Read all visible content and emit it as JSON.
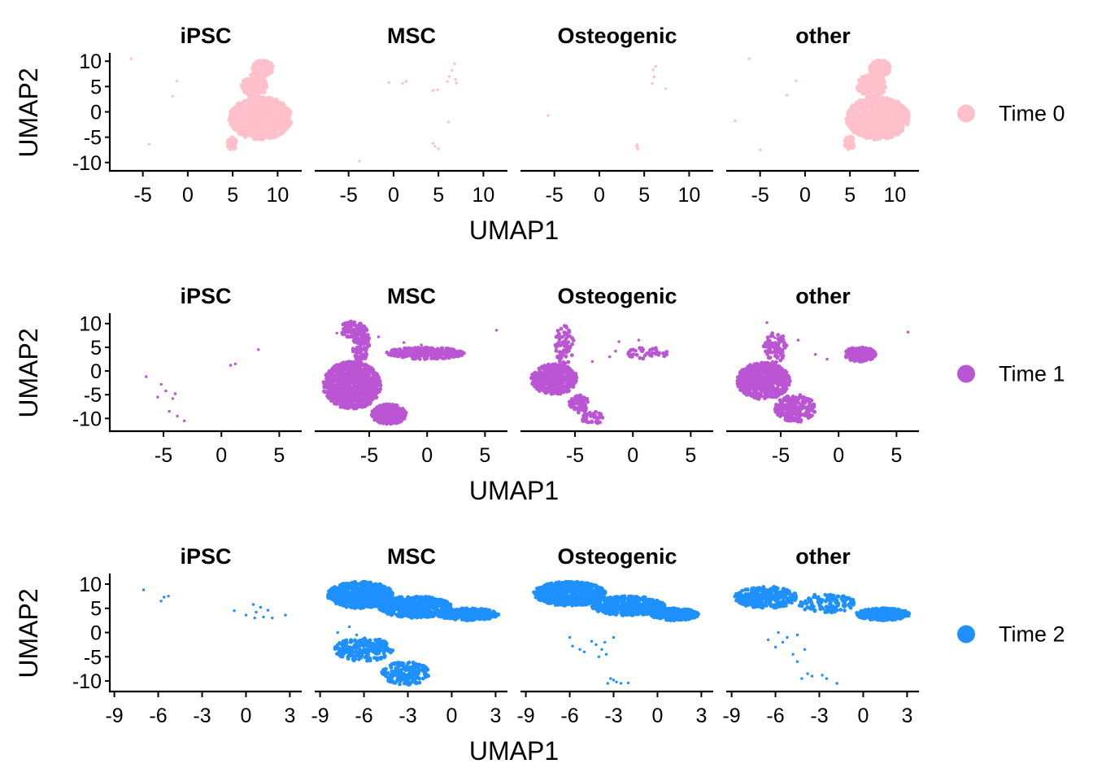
{
  "chart_data": [
    {
      "type": "scatter",
      "row_legend": "Time 0",
      "color": "#FFC0CB",
      "xlabel": "UMAP1",
      "ylabel": "UMAP2",
      "xlim": [
        -8.5,
        12.5
      ],
      "ylim": [
        -11,
        11
      ],
      "xticks": [
        -5,
        0,
        5,
        10
      ],
      "xtick_labels": [
        "-5",
        "0",
        "5",
        "10"
      ],
      "yticks": [
        10,
        5,
        0,
        -5,
        -10
      ],
      "ytick_labels": [
        "10",
        "5",
        "0",
        "-5",
        "-10"
      ],
      "panels": [
        {
          "title": "iPSC",
          "blobs": [
            {
              "x": [
                7.2,
                9.5
              ],
              "y": [
                7.0,
                10.2
              ],
              "n": 260
            },
            {
              "x": [
                6.0,
                8.8
              ],
              "y": [
                3.0,
                7.5
              ],
              "n": 220
            },
            {
              "x": [
                4.6,
                11.6
              ],
              "y": [
                -5.5,
                3.0
              ],
              "n": 900
            },
            {
              "x": [
                4.4,
                5.5
              ],
              "y": [
                -7.5,
                -5.0
              ],
              "n": 60
            }
          ],
          "points": [
            [
              -6.3,
              10.5
            ],
            [
              -1.2,
              6.1
            ],
            [
              -1.7,
              3.1
            ],
            [
              -4.3,
              -6.4
            ]
          ]
        },
        {
          "title": "MSC",
          "blobs": [],
          "points": [
            [
              6.8,
              9.5
            ],
            [
              6.5,
              8.2
            ],
            [
              6.2,
              7.0
            ],
            [
              6.9,
              6.4
            ],
            [
              6.0,
              6.0
            ],
            [
              7.0,
              5.7
            ],
            [
              4.9,
              4.3
            ],
            [
              4.4,
              4.2
            ],
            [
              1.4,
              6.0
            ],
            [
              1.0,
              5.6
            ],
            [
              -0.5,
              5.8
            ],
            [
              4.4,
              -6.2
            ],
            [
              4.6,
              -6.8
            ],
            [
              5.0,
              -7.3
            ],
            [
              -3.8,
              -9.7
            ],
            [
              6.1,
              -2.0
            ]
          ]
        },
        {
          "title": "Osteogenic",
          "blobs": [],
          "points": [
            [
              6.3,
              9.0
            ],
            [
              6.0,
              8.3
            ],
            [
              6.1,
              6.9
            ],
            [
              5.9,
              5.6
            ],
            [
              7.4,
              4.6
            ],
            [
              -5.7,
              -0.7
            ],
            [
              4.2,
              -6.5
            ],
            [
              4.2,
              -6.9
            ],
            [
              4.3,
              -7.3
            ]
          ]
        },
        {
          "title": "other",
          "blobs": [
            {
              "x": [
                7.2,
                9.5
              ],
              "y": [
                7.0,
                10.2
              ],
              "n": 260
            },
            {
              "x": [
                5.8,
                9.0
              ],
              "y": [
                2.8,
                7.5
              ],
              "n": 220
            },
            {
              "x": [
                4.6,
                11.6
              ],
              "y": [
                -5.5,
                3.0
              ],
              "n": 900
            },
            {
              "x": [
                4.4,
                5.5
              ],
              "y": [
                -7.5,
                -4.8
              ],
              "n": 60
            }
          ],
          "points": [
            [
              -6.2,
              10.5
            ],
            [
              -1.0,
              6.1
            ],
            [
              -2.0,
              3.3
            ],
            [
              -7.8,
              -1.8
            ],
            [
              -5.0,
              -7.5
            ],
            [
              8.5,
              -3.8
            ]
          ]
        }
      ]
    },
    {
      "type": "scatter",
      "row_legend": "Time 1",
      "color": "#BA55D3",
      "xlabel": "UMAP1",
      "ylabel": "UMAP2",
      "xlim": [
        -9.5,
        6.8
      ],
      "ylim": [
        -12,
        11.5
      ],
      "xticks": [
        -5,
        0,
        5
      ],
      "xtick_labels": [
        "-5",
        "0",
        "5"
      ],
      "yticks": [
        10,
        5,
        0,
        -5,
        -10
      ],
      "yticks_labels_note": "",
      "ytick_labels": [
        "10",
        "5",
        "0",
        "-5",
        "-10"
      ],
      "panels": [
        {
          "title": "iPSC",
          "blobs": [],
          "points": [
            [
              -6.5,
              -1.2
            ],
            [
              -5.2,
              -2.8
            ],
            [
              -4.8,
              -4.2
            ],
            [
              -5.5,
              -5.5
            ],
            [
              -4.2,
              -5.8
            ],
            [
              -4.5,
              -8.5
            ],
            [
              -3.8,
              -9.5
            ],
            [
              -3.2,
              -10.5
            ],
            [
              0.8,
              1.2
            ],
            [
              1.2,
              1.5
            ],
            [
              3.2,
              4.5
            ],
            [
              -4.0,
              -4.8
            ]
          ]
        },
        {
          "title": "MSC",
          "blobs": [
            {
              "x": [
                -9.0,
                -4.0
              ],
              "y": [
                -8.0,
                2.0
              ],
              "n": 900
            },
            {
              "x": [
                -4.8,
                -1.8
              ],
              "y": [
                -11.2,
                -7.0
              ],
              "n": 280
            },
            {
              "x": [
                -6.5,
                -5.0
              ],
              "y": [
                2.0,
                10.0
              ],
              "n": 120
            },
            {
              "x": [
                -3.5,
                3.2
              ],
              "y": [
                2.5,
                5.0
              ],
              "n": 260
            },
            {
              "x": [
                -7.5,
                -5.5
              ],
              "y": [
                7.0,
                10.5
              ],
              "n": 60
            }
          ],
          "points": [
            [
              6.0,
              8.6
            ],
            [
              -7.8,
              8.0
            ],
            [
              -4.2,
              7.2
            ],
            [
              -2.0,
              6.0
            ],
            [
              -0.5,
              5.5
            ]
          ]
        },
        {
          "title": "Osteogenic",
          "blobs": [
            {
              "x": [
                -8.8,
                -4.8
              ],
              "y": [
                -5.0,
                1.5
              ],
              "n": 450
            },
            {
              "x": [
                -5.5,
                -3.8
              ],
              "y": [
                -9.0,
                -5.0
              ],
              "n": 80
            },
            {
              "x": [
                -6.8,
                -5.0
              ],
              "y": [
                1.5,
                9.5
              ],
              "n": 70
            },
            {
              "x": [
                -4.5,
                -2.5
              ],
              "y": [
                -11.2,
                -8.5
              ],
              "n": 40
            },
            {
              "x": [
                -0.5,
                3.0
              ],
              "y": [
                2.5,
                5.0
              ],
              "n": 45
            }
          ],
          "points": [
            [
              -1.2,
              6.2
            ],
            [
              0.5,
              6.5
            ],
            [
              -1.5,
              4.2
            ],
            [
              -2.0,
              3.0
            ],
            [
              -3.5,
              2.0
            ]
          ]
        },
        {
          "title": "other",
          "blobs": [
            {
              "x": [
                -8.8,
                -4.2
              ],
              "y": [
                -6.0,
                1.8
              ],
              "n": 600
            },
            {
              "x": [
                -5.5,
                -2.0
              ],
              "y": [
                -10.8,
                -5.0
              ],
              "n": 220
            },
            {
              "x": [
                -6.5,
                -4.5
              ],
              "y": [
                1.8,
                8.5
              ],
              "n": 80
            },
            {
              "x": [
                0.5,
                3.2
              ],
              "y": [
                2.0,
                5.0
              ],
              "n": 200
            }
          ],
          "points": [
            [
              6.0,
              8.2
            ],
            [
              -6.2,
              10.2
            ],
            [
              -5.5,
              7.0
            ],
            [
              -3.5,
              6.5
            ],
            [
              -2.0,
              3.5
            ],
            [
              -1.0,
              2.5
            ]
          ]
        }
      ]
    },
    {
      "type": "scatter",
      "row_legend": "Time 2",
      "color": "#1E90FF",
      "xlabel": "UMAP1",
      "ylabel": "UMAP2",
      "xlim": [
        -9.2,
        3.7
      ],
      "ylim": [
        -11.5,
        11.5
      ],
      "xticks": [
        -9,
        -6,
        -3,
        0,
        3
      ],
      "xtick_labels": [
        "-9",
        "-6",
        "-3",
        "0",
        "3"
      ],
      "yticks": [
        10,
        5,
        0,
        -5,
        -10
      ],
      "ytick_labels": [
        "10",
        "5",
        "0",
        "-5",
        "-10"
      ],
      "panels": [
        {
          "title": "iPSC",
          "blobs": [],
          "points": [
            [
              -7.0,
              8.8
            ],
            [
              -5.8,
              6.5
            ],
            [
              -5.6,
              7.3
            ],
            [
              -5.3,
              7.5
            ],
            [
              -0.8,
              4.5
            ],
            [
              0.5,
              5.8
            ],
            [
              1.0,
              5.2
            ],
            [
              0.7,
              4.2
            ],
            [
              0.6,
              3.0
            ],
            [
              1.2,
              3.2
            ],
            [
              1.8,
              3.0
            ],
            [
              2.7,
              3.6
            ],
            [
              1.5,
              4.6
            ],
            [
              0.0,
              3.6
            ]
          ]
        },
        {
          "title": "MSC",
          "blobs": [
            {
              "x": [
                -8.5,
                -4.0
              ],
              "y": [
                5.0,
                10.5
              ],
              "n": 700
            },
            {
              "x": [
                -5.0,
                0.0
              ],
              "y": [
                3.0,
                7.5
              ],
              "n": 500
            },
            {
              "x": [
                -1.0,
                3.2
              ],
              "y": [
                2.5,
                5.0
              ],
              "n": 350
            },
            {
              "x": [
                -8.0,
                -4.0
              ],
              "y": [
                -6.0,
                -1.0
              ],
              "n": 220
            },
            {
              "x": [
                -4.8,
                -1.5
              ],
              "y": [
                -10.8,
                -6.0
              ],
              "n": 180
            }
          ],
          "points": [
            [
              -7.8,
              0.0
            ],
            [
              -7.0,
              1.2
            ],
            [
              -6.5,
              -0.5
            ]
          ]
        },
        {
          "title": "Osteogenic",
          "blobs": [
            {
              "x": [
                -8.5,
                -3.5
              ],
              "y": [
                5.5,
                10.5
              ],
              "n": 700
            },
            {
              "x": [
                -4.5,
                0.5
              ],
              "y": [
                3.5,
                7.5
              ],
              "n": 450
            },
            {
              "x": [
                -0.5,
                2.8
              ],
              "y": [
                2.5,
                5.0
              ],
              "n": 300
            }
          ],
          "points": [
            [
              -6.0,
              -1.0
            ],
            [
              -5.8,
              -2.8
            ],
            [
              -5.3,
              -3.5
            ],
            [
              -4.2,
              -2.5
            ],
            [
              -3.8,
              -3.5
            ],
            [
              -3.5,
              -4.5
            ],
            [
              -4.0,
              -5.0
            ],
            [
              -3.6,
              -2.0
            ],
            [
              -4.5,
              -1.8
            ],
            [
              -3.2,
              -9.5
            ],
            [
              -2.8,
              -10.2
            ],
            [
              -3.4,
              -10.5
            ],
            [
              -2.5,
              -10.5
            ],
            [
              -2.0,
              -10.4
            ],
            [
              -3.0,
              -9.8
            ],
            [
              -5.0,
              -4.0
            ],
            [
              -3.0,
              -1.0
            ]
          ]
        },
        {
          "title": "other",
          "blobs": [
            {
              "x": [
                -8.8,
                -4.5
              ],
              "y": [
                5.0,
                9.5
              ],
              "n": 300
            },
            {
              "x": [
                -4.5,
                -0.5
              ],
              "y": [
                4.0,
                8.0
              ],
              "n": 120
            },
            {
              "x": [
                -0.5,
                3.2
              ],
              "y": [
                2.5,
                5.0
              ],
              "n": 300
            }
          ],
          "points": [
            [
              -6.5,
              -1.5
            ],
            [
              -6.0,
              -3.0
            ],
            [
              -5.5,
              -2.0
            ],
            [
              -5.2,
              -1.0
            ],
            [
              -4.0,
              -3.5
            ],
            [
              -4.5,
              -6.0
            ],
            [
              -3.8,
              -8.5
            ],
            [
              -4.2,
              -9.5
            ],
            [
              -3.5,
              -9.0
            ],
            [
              -2.5,
              -9.5
            ],
            [
              -2.8,
              -8.8
            ],
            [
              -1.8,
              -10.5
            ],
            [
              -5.8,
              0.0
            ],
            [
              -4.5,
              -0.5
            ],
            [
              -4.8,
              -4.5
            ]
          ]
        }
      ]
    }
  ]
}
